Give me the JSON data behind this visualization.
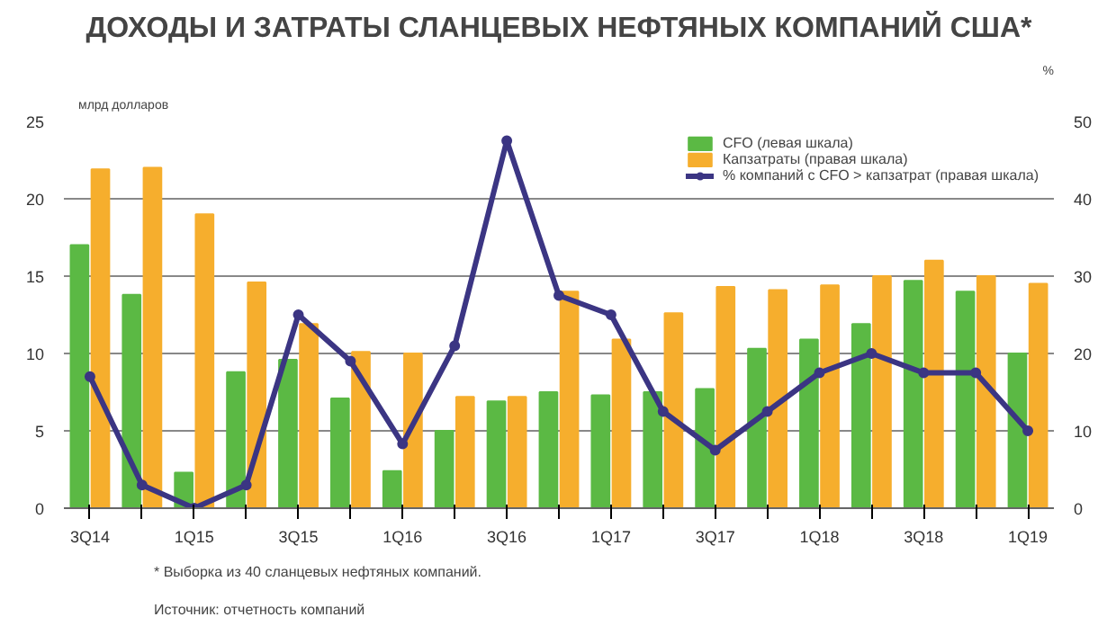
{
  "chart_data": {
    "type": "bar",
    "title": "ДОХОДЫ И ЗАТРАТЫ СЛАНЦЕВЫХ НЕФТЯНЫХ КОМПАНИЙ США*",
    "ylabel": "млрд долларов",
    "y2label": "%",
    "categories": [
      "3Q14",
      null,
      "1Q15",
      null,
      "3Q15",
      null,
      "1Q16",
      null,
      "3Q16",
      null,
      "1Q17",
      null,
      "3Q17",
      null,
      "1Q18",
      null,
      "3Q18",
      null,
      "1Q19"
    ],
    "series": [
      {
        "name": "CFO (левая шкала)",
        "color": "#5bb944",
        "values": [
          17,
          13.8,
          2.3,
          8.8,
          9.6,
          7.1,
          2.4,
          5.0,
          6.9,
          7.5,
          7.3,
          7.5,
          7.7,
          10.3,
          10.9,
          11.9,
          14.7,
          14.0,
          10.0
        ]
      },
      {
        "name": "Капзатраты (правая шкала)",
        "color": "#f6ae2d",
        "values": [
          21.9,
          22.0,
          19.0,
          14.6,
          11.9,
          10.1,
          10.0,
          7.2,
          7.2,
          14.0,
          10.9,
          12.6,
          14.3,
          14.1,
          14.4,
          15.0,
          16.0,
          15.0,
          14.5
        ]
      },
      {
        "name": "% компаний с CFO > капзатрат (правая шкала)",
        "type": "line",
        "axis": "y2",
        "color": "#3b3583",
        "values": [
          17,
          3,
          0,
          3,
          25,
          19,
          8.3,
          21,
          47.5,
          27.5,
          25,
          12.5,
          7.5,
          12.5,
          17.5,
          20,
          17.5,
          17.5,
          10
        ]
      }
    ],
    "ylim": [
      0,
      25
    ],
    "yticks": [
      0,
      5,
      10,
      15,
      20,
      25
    ],
    "y2lim": [
      0,
      50
    ],
    "y2ticks": [
      0,
      10,
      20,
      30,
      40,
      50
    ],
    "grid": "y",
    "legend": "top right",
    "marker": "circle",
    "annotations": [
      "* Выборка из 40 сланцевых нефтяных компаний.",
      "Источник: отчетность компаний"
    ]
  }
}
